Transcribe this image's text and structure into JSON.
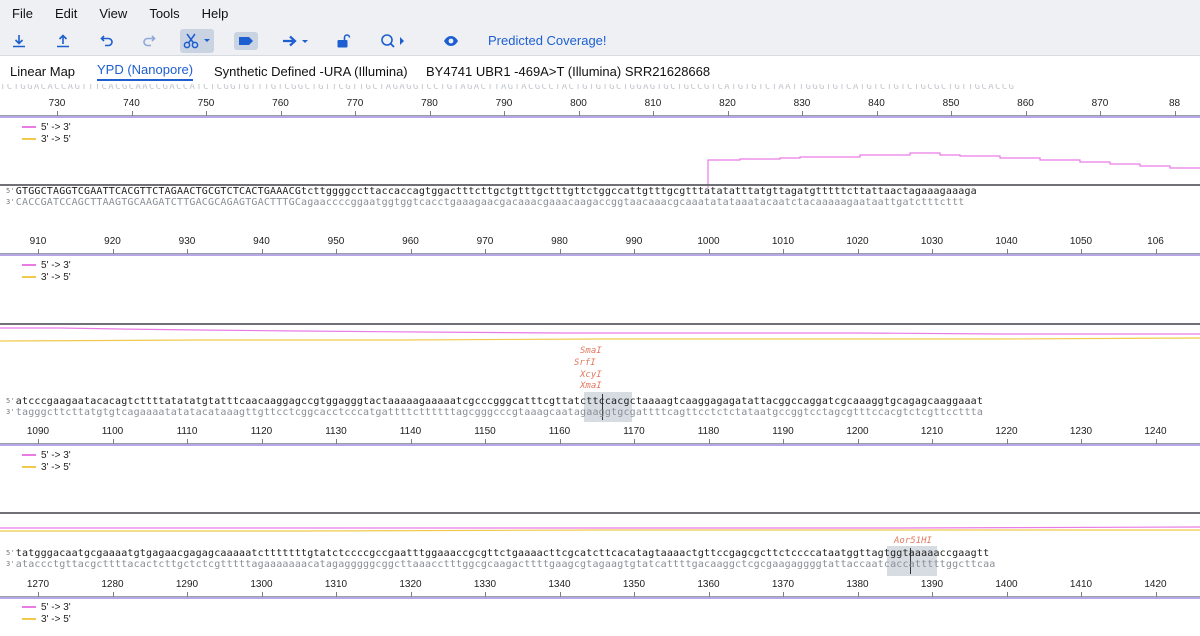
{
  "menu": [
    "File",
    "Edit",
    "View",
    "Tools",
    "Help"
  ],
  "toolbar": {
    "icons": [
      "download-icon",
      "upload-icon",
      "undo-icon",
      "redo-icon",
      "scissors-icon",
      "label-icon",
      "arrow-right-icon",
      "unlock-icon",
      "search-icon",
      "eye-icon"
    ],
    "coverage_label": "Predicted Coverage!"
  },
  "tabs": [
    {
      "label": "Linear Map",
      "active": false
    },
    {
      "label": "YPD (Nanopore)",
      "active": true
    },
    {
      "label": "Synthetic Defined -URA (Illumina)",
      "active": false
    },
    {
      "label": "BY4741 UBR1 -469A>T (Illumina) SRR21628668",
      "active": false
    }
  ],
  "colors": {
    "forward": "#e97be6",
    "reverse": "#f2c94c",
    "accent": "#1d5fd1",
    "enzyme": "#e07a5f"
  },
  "legend": {
    "forward": "5' -> 3'",
    "reverse": "3' -> 5'"
  },
  "top_sequence_fragment": "TCTGGACACCAGTTTCACGCAACCGACCATCTCGGTGTTTGTCGGCTGTTCGTTGCTAGAGGTCCTGTAGACTTAGTACGCCTACTGTGTGCTGGAGTGCTGCCGTCATGTGTCTAATTGGGTGTCATGTCTGTCTGCGCTGTTGCACCG",
  "rows": [
    {
      "ruler": [
        "730",
        "740",
        "750",
        "760",
        "770",
        "780",
        "790",
        "800",
        "810",
        "820",
        "830",
        "840",
        "850",
        "860",
        "870",
        "88"
      ],
      "top": "GTGGCTAGGTCGAATTCACGTTCTAGAACTGCGTCTCACTGAAACGtcttggggccttaccaccagtggactttcttgctgtttgctttgttctggccattgtttgcgtttatatatttatgttagatgtttttcttattaactagaaagaaaga",
      "bot": "CACCGATCCAGCTTAAGTGCAAGATCTTGACGCAGAGTGACTTTGCagaaccccggaatggtggtcacctgaaagaacgacaaacgaaacaagaccggtaacaaacgcaaatatataaatacaatctacaaaaagaataattgatctttcttt"
    },
    {
      "ruler": [
        "910",
        "920",
        "930",
        "940",
        "950",
        "960",
        "970",
        "980",
        "990",
        "1000",
        "1010",
        "1020",
        "1030",
        "1040",
        "1050",
        "106"
      ],
      "enzymes": [
        "SmaI",
        "SrfI",
        "XcyI",
        "XmaI"
      ],
      "top": "atcccgaagaatacacagtcttttatatatgtatttcaacaaggagccgtggagggtactaaaaagaaaaatcgcccgggcatttcgttatcttccacgctaaaagtcaaggagagatattacggccaggatcgcaaaggtgcagagcaaggaaat",
      "bot": "tagggcttcttatgtgtcagaaaatatatacataaagttgttcctcggcacctcccatgattttcttttttagcgggcccgtaaagcaatagaaggtgcgattttcagttcctctctataatgccggtcctagcgtttccacgtctcgttccttta"
    },
    {
      "ruler": [
        "1090",
        "1100",
        "1110",
        "1120",
        "1130",
        "1140",
        "1150",
        "1160",
        "1170",
        "1180",
        "1190",
        "1200",
        "1210",
        "1220",
        "1230",
        "1240"
      ],
      "enzymes": [
        "Aor51HI"
      ],
      "top": "tatgggacaatgcgaaaatgtgagaacgagagcaaaaatctttttttgtatctccccgccgaatttggaaaccgcgttctgaaaacttcgcatcttcacatagtaaaactgttccgagcgcttctccccataatggttagtggtaaaaaccgaagtt",
      "bot": "ataccctgttacgcttttacactcttgctctcgtttttagaaaaaaacatagagggggcggcttaaacctttggcgcaagacttttgaagcgtagaagtgtatcattttgacaaggctcgcgaagaggggtattaccaatcaccatttttggcttcaa"
    },
    {
      "ruler": [
        "1270",
        "1280",
        "1290",
        "1300",
        "1310",
        "1320",
        "1330",
        "1340",
        "1350",
        "1360",
        "1370",
        "1380",
        "1390",
        "1400",
        "1410",
        "1420"
      ]
    }
  ]
}
